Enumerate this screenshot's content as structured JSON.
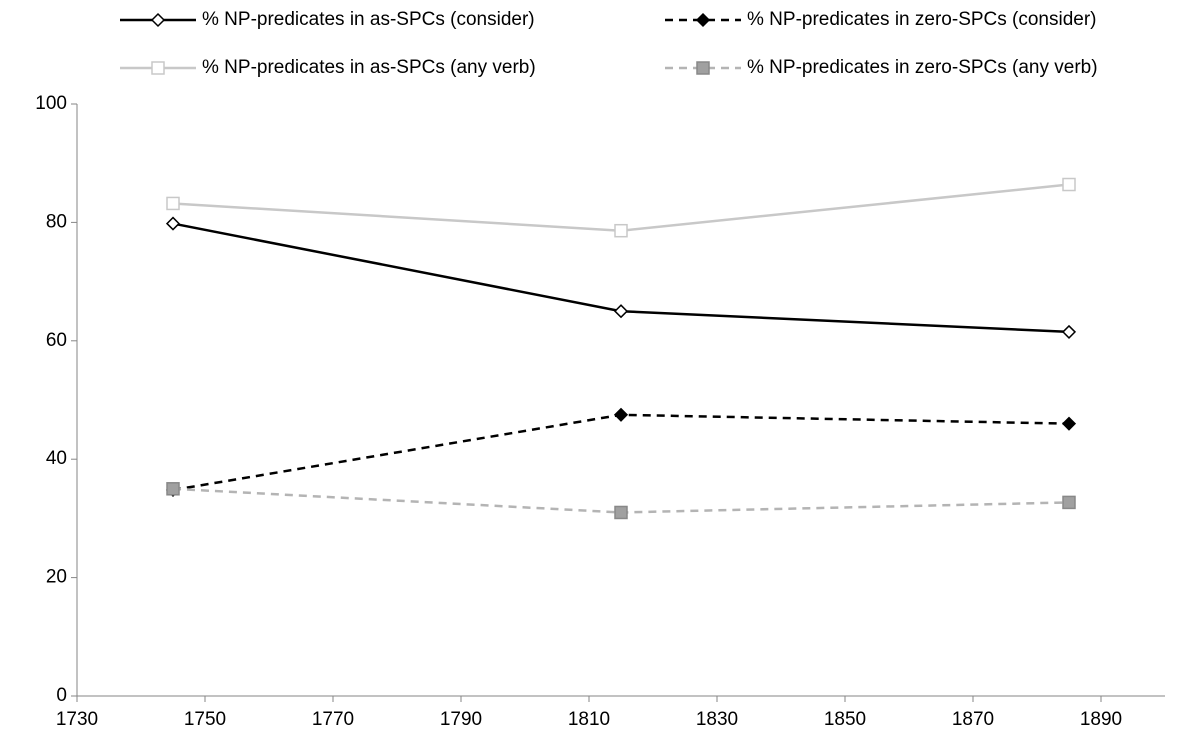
{
  "chart_data": {
    "type": "line",
    "series": [
      {
        "name": "% NP-predicates in as-SPCs (consider)",
        "color": "#000000",
        "dash": false,
        "marker": "diamond",
        "marker_fill": "#ffffff",
        "x": [
          1745,
          1815,
          1885
        ],
        "values": [
          79.8,
          65,
          61.5
        ]
      },
      {
        "name": "% NP-predicates in zero-SPCs (consider)",
        "color": "#000000",
        "dash": true,
        "marker": "diamond",
        "marker_fill": "#000000",
        "x": [
          1745,
          1815,
          1885
        ],
        "values": [
          34.8,
          47.5,
          46
        ]
      },
      {
        "name": "% NP-predicates in as-SPCs (any verb)",
        "color": "#c8c8c8",
        "dash": false,
        "marker": "square",
        "marker_fill": "#ffffff",
        "x": [
          1745,
          1815,
          1885
        ],
        "values": [
          83.2,
          78.6,
          86.4
        ]
      },
      {
        "name": "% NP-predicates in zero-SPCs (any verb)",
        "color": "#b4b4b4",
        "dash": true,
        "marker": "square",
        "marker_fill": "#a0a0a0",
        "x": [
          1745,
          1815,
          1885
        ],
        "values": [
          35,
          31,
          32.7
        ]
      }
    ],
    "xlim": [
      1730,
      1900
    ],
    "xticks": [
      1730,
      1750,
      1770,
      1790,
      1810,
      1830,
      1850,
      1870,
      1890
    ],
    "ylim": [
      0,
      100
    ],
    "yticks": [
      0,
      20,
      40,
      60,
      80,
      100
    ],
    "grid": false
  }
}
